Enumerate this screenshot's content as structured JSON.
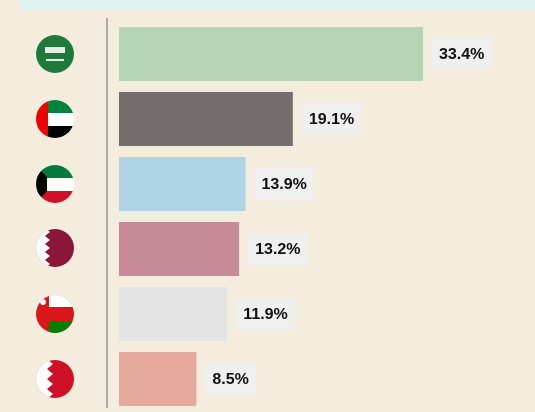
{
  "chart_data": {
    "type": "bar",
    "orientation": "horizontal",
    "values": [
      33.4,
      19.1,
      13.9,
      13.2,
      11.9,
      8.5
    ],
    "value_labels": [
      "33.4%",
      "19.1%",
      "13.9%",
      "13.2%",
      "11.9%",
      "8.5%"
    ],
    "colors": [
      "#b5d3b5",
      "#736e6c",
      "#afd4e6",
      "#c68a99",
      "#e3e3e3",
      "#e4a89d"
    ]
  }
}
